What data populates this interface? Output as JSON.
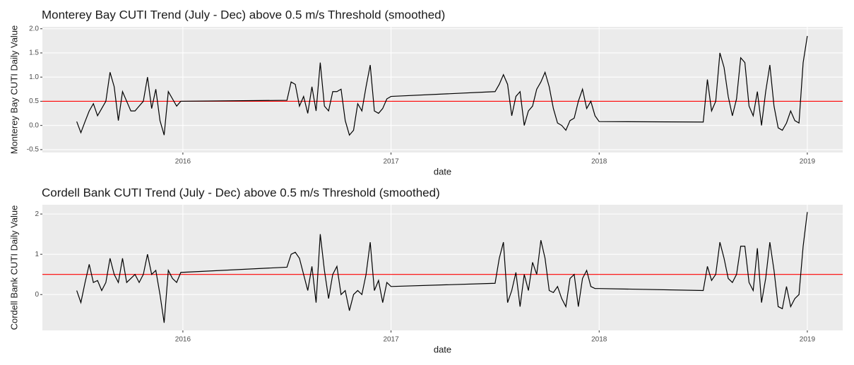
{
  "chart_data": [
    {
      "type": "line",
      "title": "Monterey Bay CUTI Trend (July - Dec) above 0.5 m/s Threshold (smoothed)",
      "xlabel": "date",
      "ylabel": "Monterey Bay CUTI Daily Value",
      "xlim": [
        2015.325,
        2019.17
      ],
      "ylim": [
        -0.56,
        2.04
      ],
      "xticks": [
        2016,
        2017,
        2018,
        2019
      ],
      "yticks": [
        {
          "value": -0.5,
          "label": "-0.5"
        },
        {
          "value": 0,
          "label": "0.0"
        },
        0.5,
        {
          "value": 1,
          "label": "1.0"
        },
        1.5,
        {
          "value": 2,
          "label": "2.0"
        }
      ],
      "grid": true,
      "color": "#000000",
      "hline": {
        "value": 0.5,
        "color": "#ff0000"
      },
      "x": [
        2015.49,
        2015.51,
        2015.53,
        2015.55,
        2015.57,
        2015.59,
        2015.61,
        2015.63,
        2015.65,
        2015.67,
        2015.69,
        2015.71,
        2015.73,
        2015.75,
        2015.77,
        2015.79,
        2015.81,
        2015.83,
        2015.85,
        2015.87,
        2015.89,
        2015.91,
        2015.93,
        2015.95,
        2015.97,
        2015.99,
        2016.5,
        2016.52,
        2016.54,
        2016.56,
        2016.58,
        2016.6,
        2016.62,
        2016.64,
        2016.66,
        2016.68,
        2016.7,
        2016.72,
        2016.74,
        2016.76,
        2016.78,
        2016.8,
        2016.82,
        2016.84,
        2016.86,
        2016.88,
        2016.9,
        2016.92,
        2016.94,
        2016.96,
        2016.98,
        2017.0,
        2017.5,
        2017.52,
        2017.54,
        2017.56,
        2017.58,
        2017.6,
        2017.62,
        2017.64,
        2017.66,
        2017.68,
        2017.7,
        2017.72,
        2017.74,
        2017.76,
        2017.78,
        2017.8,
        2017.82,
        2017.84,
        2017.86,
        2017.88,
        2017.9,
        2017.92,
        2017.94,
        2017.96,
        2017.98,
        2018.0,
        2018.5,
        2018.52,
        2018.54,
        2018.56,
        2018.58,
        2018.6,
        2018.62,
        2018.64,
        2018.66,
        2018.68,
        2018.7,
        2018.72,
        2018.74,
        2018.76,
        2018.78,
        2018.8,
        2018.82,
        2018.84,
        2018.86,
        2018.88,
        2018.9,
        2018.92,
        2018.94,
        2018.96,
        2018.98,
        2019.0
      ],
      "values": [
        0.08,
        -0.15,
        0.08,
        0.3,
        0.45,
        0.2,
        0.35,
        0.5,
        1.1,
        0.8,
        0.1,
        0.7,
        0.5,
        0.3,
        0.3,
        0.4,
        0.5,
        1.0,
        0.35,
        0.75,
        0.1,
        -0.2,
        0.7,
        0.55,
        0.4,
        0.5,
        0.52,
        0.9,
        0.85,
        0.4,
        0.6,
        0.25,
        0.8,
        0.3,
        1.3,
        0.4,
        0.3,
        0.7,
        0.7,
        0.75,
        0.1,
        -0.2,
        -0.1,
        0.45,
        0.3,
        0.8,
        1.25,
        0.3,
        0.25,
        0.35,
        0.55,
        0.6,
        0.7,
        0.85,
        1.05,
        0.85,
        0.2,
        0.6,
        0.7,
        0.0,
        0.3,
        0.4,
        0.75,
        0.9,
        1.1,
        0.8,
        0.35,
        0.05,
        0.0,
        -0.1,
        0.1,
        0.15,
        0.5,
        0.75,
        0.35,
        0.5,
        0.2,
        0.08,
        0.07,
        0.95,
        0.3,
        0.5,
        1.5,
        1.2,
        0.6,
        0.2,
        0.55,
        1.4,
        1.3,
        0.4,
        0.2,
        0.7,
        0.0,
        0.7,
        1.25,
        0.4,
        -0.05,
        -0.1,
        0.05,
        0.3,
        0.1,
        0.05,
        1.3,
        1.85
      ]
    },
    {
      "type": "line",
      "title": "Cordell Bank CUTI Trend (July - Dec) above 0.5 m/s Threshold (smoothed)",
      "xlabel": "date",
      "ylabel": "Cordell Bank CUTI Daily Value",
      "xlim": [
        2015.325,
        2019.17
      ],
      "ylim": [
        -0.89,
        2.23
      ],
      "xticks": [
        2016,
        2017,
        2018,
        2019
      ],
      "yticks": [
        0,
        1,
        2
      ],
      "grid": true,
      "color": "#000000",
      "hline": {
        "value": 0.5,
        "color": "#ff0000"
      },
      "x": [
        2015.49,
        2015.51,
        2015.53,
        2015.55,
        2015.57,
        2015.59,
        2015.61,
        2015.63,
        2015.65,
        2015.67,
        2015.69,
        2015.71,
        2015.73,
        2015.75,
        2015.77,
        2015.79,
        2015.81,
        2015.83,
        2015.85,
        2015.87,
        2015.89,
        2015.91,
        2015.93,
        2015.95,
        2015.97,
        2015.99,
        2016.5,
        2016.52,
        2016.54,
        2016.56,
        2016.58,
        2016.6,
        2016.62,
        2016.64,
        2016.66,
        2016.68,
        2016.7,
        2016.72,
        2016.74,
        2016.76,
        2016.78,
        2016.8,
        2016.82,
        2016.84,
        2016.86,
        2016.88,
        2016.9,
        2016.92,
        2016.94,
        2016.96,
        2016.98,
        2017.0,
        2017.5,
        2017.52,
        2017.54,
        2017.56,
        2017.58,
        2017.6,
        2017.62,
        2017.64,
        2017.66,
        2017.68,
        2017.7,
        2017.72,
        2017.74,
        2017.76,
        2017.78,
        2017.8,
        2017.82,
        2017.84,
        2017.86,
        2017.88,
        2017.9,
        2017.92,
        2017.94,
        2017.96,
        2017.98,
        2018.0,
        2018.5,
        2018.52,
        2018.54,
        2018.56,
        2018.58,
        2018.6,
        2018.62,
        2018.64,
        2018.66,
        2018.68,
        2018.7,
        2018.72,
        2018.74,
        2018.76,
        2018.78,
        2018.8,
        2018.82,
        2018.84,
        2018.86,
        2018.88,
        2018.9,
        2018.92,
        2018.94,
        2018.96,
        2018.98,
        2019.0
      ],
      "values": [
        0.1,
        -0.2,
        0.3,
        0.75,
        0.3,
        0.35,
        0.1,
        0.3,
        0.9,
        0.5,
        0.3,
        0.9,
        0.3,
        0.4,
        0.5,
        0.3,
        0.5,
        1.0,
        0.5,
        0.6,
        0.0,
        -0.7,
        0.6,
        0.4,
        0.3,
        0.55,
        0.68,
        1.0,
        1.05,
        0.9,
        0.5,
        0.1,
        0.7,
        -0.2,
        1.5,
        0.6,
        -0.1,
        0.5,
        0.7,
        0.0,
        0.1,
        -0.4,
        0.0,
        0.1,
        0.0,
        0.5,
        1.3,
        0.1,
        0.35,
        -0.2,
        0.3,
        0.2,
        0.28,
        0.9,
        1.3,
        -0.2,
        0.1,
        0.55,
        -0.3,
        0.5,
        0.1,
        0.8,
        0.5,
        1.35,
        0.9,
        0.1,
        0.05,
        0.2,
        -0.1,
        -0.3,
        0.4,
        0.5,
        -0.3,
        0.4,
        0.6,
        0.2,
        0.15,
        0.15,
        0.1,
        0.7,
        0.35,
        0.5,
        1.3,
        0.9,
        0.4,
        0.3,
        0.5,
        1.2,
        1.2,
        0.3,
        0.1,
        1.15,
        -0.2,
        0.4,
        1.3,
        0.6,
        -0.3,
        -0.35,
        0.2,
        -0.3,
        -0.1,
        0.0,
        1.2,
        2.05
      ]
    }
  ]
}
